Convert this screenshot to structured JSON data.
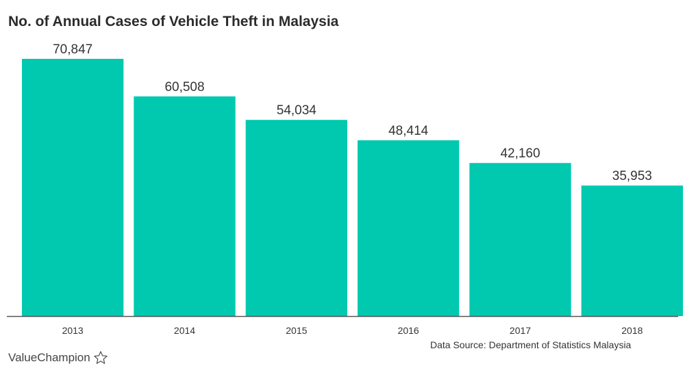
{
  "chart_data": {
    "type": "bar",
    "title": "No. of Annual Cases of Vehicle Theft in Malaysia",
    "categories": [
      "2013",
      "2014",
      "2015",
      "2016",
      "2017",
      "2018"
    ],
    "values": [
      70847,
      60508,
      54034,
      48414,
      42160,
      35953
    ],
    "value_labels": [
      "70,847",
      "60,508",
      "54,034",
      "48,414",
      "42,160",
      "35,953"
    ],
    "ylim": [
      0,
      70847
    ],
    "grid": false,
    "legend": "none",
    "bar_color": "#00c9b0",
    "axis_color": "#555555"
  },
  "source": "Data Source: Department of Statistics Malaysia",
  "brand": {
    "name": "ValueChampion",
    "icon": "star-outline-icon"
  }
}
